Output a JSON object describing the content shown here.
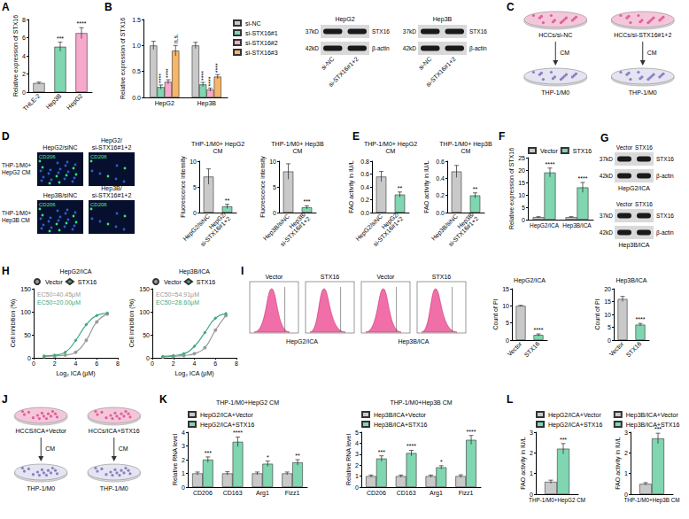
{
  "chart_data": [
    {
      "panel": "A",
      "type": "bar",
      "y_label": "Relative expression of STX16",
      "categories": [
        "THLE-2",
        "Hep3B",
        "HepG2"
      ],
      "series": [
        {
          "colors": [
            "#c9c9c9",
            "#7fd6b0",
            "#f6a9cd"
          ],
          "values": [
            1,
            5,
            6.5
          ],
          "errors": [
            0.1,
            0.5,
            0.6
          ],
          "significance": [
            null,
            "***",
            "****"
          ]
        }
      ],
      "ylim": [
        0,
        8
      ],
      "yticks": [
        0,
        2,
        4,
        6,
        8
      ]
    },
    {
      "panel": "B",
      "type": "bar",
      "y_label": "Relative expression of STX16",
      "categories": [
        "HepG2",
        "Hep3B"
      ],
      "legend": "right",
      "series": [
        {
          "name": "si-NC",
          "color": "#c9c9c9",
          "values": [
            1,
            1
          ],
          "errors": [
            0.08,
            0.06
          ]
        },
        {
          "name": "si-STX16#1",
          "color": "#7fd6b0",
          "values": [
            0.2,
            0.25
          ],
          "errors": [
            0.04,
            0.04
          ],
          "significance": [
            "****",
            "****"
          ]
        },
        {
          "name": "si-STX16#2",
          "color": "#f6a9cd",
          "values": [
            0.3,
            0.15
          ],
          "errors": [
            0.04,
            0.03
          ],
          "significance": [
            "****",
            "****"
          ]
        },
        {
          "name": "si-STX16#3",
          "color": "#f7b567",
          "values": [
            0.9,
            0.4
          ],
          "errors": [
            0.1,
            0.04
          ],
          "significance": [
            "n.s.",
            "****"
          ]
        }
      ],
      "ylim": [
        0,
        1.5
      ],
      "yticks": [
        {
          "value": 0,
          "label": "0.0"
        },
        0.5,
        {
          "value": 1,
          "label": "1.0"
        },
        1.5
      ]
    },
    {
      "type": "bar",
      "title": "THP-1/M0+ HepG2 CM",
      "y_label": "Fluorescence intensity",
      "categories": [
        "HepG2/siNC",
        "HepG2/ si-STX16#1+2"
      ],
      "series": [
        {
          "colors": [
            "#c9c9c9",
            "#7fd6b0"
          ],
          "values": [
            7,
            1.2
          ],
          "errors": [
            1.5,
            0.4
          ],
          "significance": [
            null,
            "**"
          ]
        }
      ],
      "ylim": [
        0,
        10
      ],
      "yticks": [
        0,
        5,
        10
      ]
    },
    {
      "type": "bar",
      "title": "THP-1/M0+ Hep3B CM",
      "y_label": "Fluorescence intensity",
      "categories": [
        "Hep3B/siNC",
        "Hep3B/ si-STX16#1+2"
      ],
      "series": [
        {
          "colors": [
            "#c9c9c9",
            "#7fd6b0"
          ],
          "values": [
            8,
            1
          ],
          "errors": [
            1.5,
            0.3
          ],
          "significance": [
            null,
            "***"
          ]
        }
      ],
      "ylim": [
        0,
        10
      ],
      "yticks": [
        0,
        5,
        10
      ]
    },
    {
      "panel": "E",
      "type": "bar",
      "title": "THP-1/M0+ HepG2 CM",
      "y_label": "FAO activity in IU/L",
      "categories": [
        "HepG2/siNC",
        "HepG2/ si-STX16#1+2"
      ],
      "series": [
        {
          "colors": [
            "#c9c9c9",
            "#7fd6b0"
          ],
          "values": [
            0.56,
            0.28
          ],
          "errors": [
            0.08,
            0.04
          ],
          "significance": [
            null,
            "**"
          ]
        }
      ],
      "ylim": [
        0,
        0.8
      ],
      "yticks": [
        {
          "value": 0,
          "label": "0.0"
        },
        0.2,
        0.4,
        0.6,
        0.8
      ]
    },
    {
      "type": "bar",
      "title": "THP-1/M0+ Hep3B CM",
      "y_label": "FAO activity in IU/L",
      "categories": [
        "Hep3B/siNC",
        "Hep3B/ si-STX16#1+2"
      ],
      "series": [
        {
          "colors": [
            "#c9c9c9",
            "#7fd6b0"
          ],
          "values": [
            0.48,
            0.2
          ],
          "errors": [
            0.07,
            0.03
          ],
          "significance": [
            null,
            "**"
          ]
        }
      ],
      "ylim": [
        0,
        0.6
      ],
      "yticks": [
        {
          "value": 0,
          "label": "0.0"
        },
        0.2,
        0.4,
        0.6
      ]
    },
    {
      "panel": "F",
      "type": "bar",
      "y_label": "Relative expression of STX16",
      "categories": [
        "HepG2/ICA",
        "Hep3B/ICA"
      ],
      "legend": "top",
      "series": [
        {
          "name": "Vector",
          "color": "#c9c9c9",
          "values": [
            1,
            1
          ],
          "errors": [
            0.2,
            0.2
          ]
        },
        {
          "name": "STX16",
          "color": "#7fd6b0",
          "values": [
            19,
            13
          ],
          "errors": [
            1.8,
            2
          ],
          "significance": [
            "****",
            "****"
          ]
        }
      ],
      "ylim": [
        0,
        25
      ],
      "yticks": [
        0,
        5,
        10,
        15,
        20,
        25
      ]
    },
    {
      "panel": "H",
      "type": "line",
      "title": "HepG2/ICA",
      "x_label": "Log₂ ICA (μM)",
      "y_label": "Cell inhibition (%)",
      "legend": "top",
      "x": [
        1,
        2,
        3,
        4,
        5,
        6,
        7
      ],
      "series": [
        {
          "name": "Vector",
          "color": "#9a9a9a",
          "marker": "circle",
          "values": [
            3,
            4,
            6,
            12,
            38,
            78,
            95
          ],
          "annotation": "EC50=40.45μM"
        },
        {
          "name": "STX16",
          "color": "#3faa7e",
          "marker": "diamond",
          "values": [
            4,
            6,
            12,
            38,
            72,
            92,
            97
          ],
          "annotation": "EC50=20.00μM"
        }
      ],
      "xlim": [
        0,
        8
      ],
      "xticks": [
        0,
        2,
        4,
        6,
        8
      ],
      "ylim": [
        0,
        150
      ],
      "yticks": [
        0,
        50,
        100,
        150
      ]
    },
    {
      "type": "line",
      "title": "Hep3B/ICA",
      "x_label": "Log₂ ICA (μM)",
      "y_label": "Cell inhibition (%)",
      "legend": "top",
      "x": [
        1,
        2,
        3,
        4,
        5,
        6,
        7
      ],
      "series": [
        {
          "name": "Vector",
          "color": "#9a9a9a",
          "marker": "circle",
          "values": [
            2,
            3,
            5,
            9,
            22,
            60,
            92
          ],
          "annotation": "EC50=54.91μM"
        },
        {
          "name": "STX16",
          "color": "#3faa7e",
          "marker": "diamond",
          "values": [
            3,
            5,
            9,
            25,
            55,
            86,
            96
          ],
          "annotation": "EC50=28.60μM"
        }
      ],
      "xlim": [
        0,
        8
      ],
      "xticks": [
        0,
        2,
        4,
        6,
        8
      ],
      "ylim": [
        0,
        150
      ],
      "yticks": [
        0,
        50,
        100,
        150
      ]
    },
    {
      "type": "bar",
      "title": "HepG2/ICA",
      "y_label": "Count of PI",
      "categories": [
        "Vector",
        "STX16"
      ],
      "series": [
        {
          "colors": [
            "#c9c9c9",
            "#7fd6b0"
          ],
          "values": [
            10,
            1.5
          ],
          "errors": [
            0.15,
            0.3
          ],
          "significance": [
            null,
            "****"
          ]
        }
      ],
      "ylim": [
        0,
        15
      ],
      "yticks": [
        0,
        5,
        10,
        15
      ]
    },
    {
      "type": "bar",
      "title": "Hep3B/ICA",
      "y_label": "Count of PI",
      "categories": [
        "Vector",
        "STX16"
      ],
      "series": [
        {
          "colors": [
            "#c9c9c9",
            "#7fd6b0"
          ],
          "values": [
            16,
            6
          ],
          "errors": [
            1,
            0.5
          ],
          "significance": [
            null,
            "****"
          ]
        }
      ],
      "ylim": [
        0,
        20
      ],
      "yticks": [
        0,
        5,
        10,
        15,
        20
      ]
    },
    {
      "panel": "K",
      "type": "bar",
      "title": "THP-1/M0+HepG2 CM",
      "y_label": "Relative RNA level",
      "categories": [
        "CD206",
        "CD163",
        "Arg1",
        "Fizz1"
      ],
      "legend": "top",
      "series": [
        {
          "name": "HepG2/ICA+Vector",
          "color": "#c9c9c9",
          "values": [
            1,
            1,
            1,
            1
          ],
          "errors": [
            0.1,
            0.12,
            0.1,
            0.1
          ]
        },
        {
          "name": "HepG2/ICA+STX16",
          "color": "#7fd6b0",
          "values": [
            2,
            3.3,
            1.7,
            1.8
          ],
          "errors": [
            0.2,
            0.35,
            0.2,
            0.2
          ],
          "significance": [
            "***",
            "****",
            "*",
            "**"
          ]
        }
      ],
      "ylim": [
        0,
        4
      ],
      "yticks": [
        0,
        1,
        2,
        3,
        4
      ]
    },
    {
      "type": "bar",
      "title": "THP-1/M0+Hep3B CM",
      "y_label": "Relative RNA level",
      "categories": [
        "CD206",
        "CD163",
        "Arg1",
        "Fizz1"
      ],
      "legend": "top",
      "series": [
        {
          "name": "Hep3B/ICA+Vector",
          "color": "#c9c9c9",
          "values": [
            1,
            1,
            1,
            1
          ],
          "errors": [
            0.1,
            0.1,
            0.1,
            0.12
          ]
        },
        {
          "name": "Hep3B/ICA+STX16",
          "color": "#7fd6b0",
          "values": [
            2.6,
            3.1,
            1.8,
            4.3
          ],
          "errors": [
            0.25,
            0.25,
            0.15,
            0.4
          ],
          "significance": [
            "***",
            "****",
            "*",
            "****"
          ]
        }
      ],
      "ylim": [
        0,
        5
      ],
      "yticks": [
        0,
        1,
        2,
        3,
        4,
        5
      ]
    },
    {
      "panel": "L",
      "type": "bar",
      "y_label": "FAO activity in IU/L",
      "categories": [
        "THP-1/M0+HepG2 CM"
      ],
      "legend": "top",
      "series": [
        {
          "name": "HepG2/ICA+Vector",
          "color": "#c9c9c9",
          "values": [
            0.6
          ],
          "errors": [
            0.08
          ]
        },
        {
          "name": "HepG2/ICA+STX16",
          "color": "#7fd6b0",
          "values": [
            2.2
          ],
          "errors": [
            0.25
          ],
          "significance": [
            "***"
          ]
        }
      ],
      "ylim": [
        0,
        3
      ],
      "yticks": [
        0,
        1,
        2,
        3
      ]
    },
    {
      "type": "bar",
      "y_label": "FAO activity in IU/L",
      "categories": [
        "THP-1/M0+Hep3B CM"
      ],
      "legend": "top",
      "series": [
        {
          "name": "Hep3B/ICA+Vector",
          "color": "#c9c9c9",
          "values": [
            0.5
          ],
          "errors": [
            0.06
          ]
        },
        {
          "name": "Hep3B/ICA+STX16",
          "color": "#7fd6b0",
          "values": [
            2.7
          ],
          "errors": [
            0.25
          ],
          "significance": [
            "***"
          ]
        }
      ],
      "ylim": [
        0,
        3
      ],
      "yticks": [
        0,
        1,
        2,
        3
      ]
    }
  ],
  "blots": [
    {
      "title": "HepG2",
      "lanes": [
        "si-NC",
        "si-STX16#1+2"
      ],
      "rows": [
        {
          "size": "37kD",
          "label": "STX16"
        },
        {
          "size": "42kD",
          "label": "β-actin"
        }
      ]
    },
    {
      "title": "Hep3B",
      "lanes": [
        "si-NC",
        "si-STX16#1+2"
      ],
      "rows": [
        {
          "size": "37kD",
          "label": "STX16"
        },
        {
          "size": "42kD",
          "label": "β-actin"
        }
      ]
    },
    {
      "panel": "G",
      "title": "HepG2/ICA",
      "lanes": [
        "Vector",
        "STX16"
      ],
      "rows": [
        {
          "size": "37kD",
          "label": "STX16"
        },
        {
          "size": "42kD",
          "label": "β-actin"
        }
      ]
    },
    {
      "title": "Hep3B/ICA",
      "lanes": [
        "Vector",
        "STX16"
      ],
      "rows": [
        {
          "size": "37kD",
          "label": "STX16"
        },
        {
          "size": "42kD",
          "label": "β-actin"
        }
      ]
    }
  ],
  "diagrams": [
    {
      "panel": "C",
      "columns": [
        {
          "source": "HCCs/si-NC",
          "medium": "CM",
          "target": "THP-1/M0"
        },
        {
          "source": "HCCs/si-STX16#1+2",
          "medium": "CM",
          "target": "THP-1/M0"
        }
      ]
    },
    {
      "panel": "J",
      "columns": [
        {
          "source": "HCCS/ICA+Vector",
          "medium": "CM",
          "target": "THP-1/M0"
        },
        {
          "source": "HCCs/ICA+STX16",
          "medium": "CM",
          "target": "THP-1/M0"
        }
      ]
    }
  ],
  "micrographs": {
    "panel": "D",
    "marker": "CD206",
    "rows": [
      {
        "label": "THP-1/M0+ HepG2 CM",
        "images": [
          "HepG2/siNC",
          "HepG2/ si-STX16#1+2"
        ]
      },
      {
        "label": "THP-1/M0+ Hep3B CM",
        "images": [
          "Hep3B/siNC",
          "Hep3B/ si-STX16#1+2"
        ]
      }
    ]
  },
  "flow": {
    "panel": "I",
    "groups": [
      {
        "label": "HepG2/ICA",
        "panels": [
          "Vector",
          "STX16"
        ]
      },
      {
        "label": "Hep3B/ICA",
        "panels": [
          "Vector",
          "STX16"
        ]
      }
    ]
  }
}
